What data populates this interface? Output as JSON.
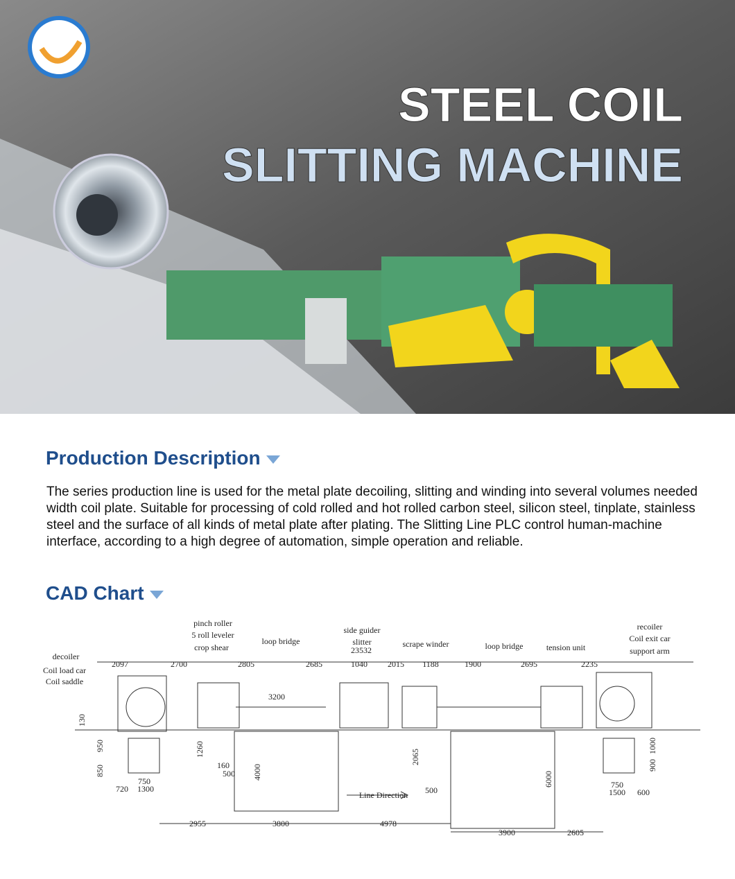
{
  "banner": {
    "title_line1": "STEEL COIL",
    "title_line2": "SLITTING MACHINE"
  },
  "sections": [
    {
      "heading": "Production Description",
      "body": "The series production line is used for the metal plate decoiling, slitting and winding into several volumes needed width coil plate. Suitable for processing of cold rolled and hot rolled carbon steel, silicon steel, tinplate, stainless steel and the surface of all kinds of metal plate after plating. The Slitting Line PLC control human-machine interface, according to a high degree of automation, simple operation and reliable."
    },
    {
      "heading": "CAD Chart"
    }
  ],
  "cad": {
    "labels": [
      "decoiler",
      "Coil load car",
      "Coil saddle",
      "pinch roller",
      "5 roll leveler",
      "crop shear",
      "loop bridge",
      "side guider",
      "slitter",
      "23532",
      "scrape winder",
      "loop bridge",
      "tension unit",
      "recoiler",
      "Coil exit car",
      "support arm",
      "Line Direction"
    ],
    "top_dimensions": [
      "2097",
      "2700",
      "2805",
      "2685",
      "1040",
      "2015",
      "1188",
      "1900",
      "2695",
      "2235"
    ],
    "bottom_dimensions": [
      "2955",
      "3800",
      "4978",
      "3900",
      "2605"
    ],
    "minor_dimensions": [
      "3200",
      "4000",
      "6000",
      "2065",
      "1260",
      "160",
      "500",
      "850",
      "950",
      "720",
      "1300",
      "750",
      "130",
      "500",
      "1500",
      "750",
      "600",
      "900",
      "1000"
    ]
  }
}
